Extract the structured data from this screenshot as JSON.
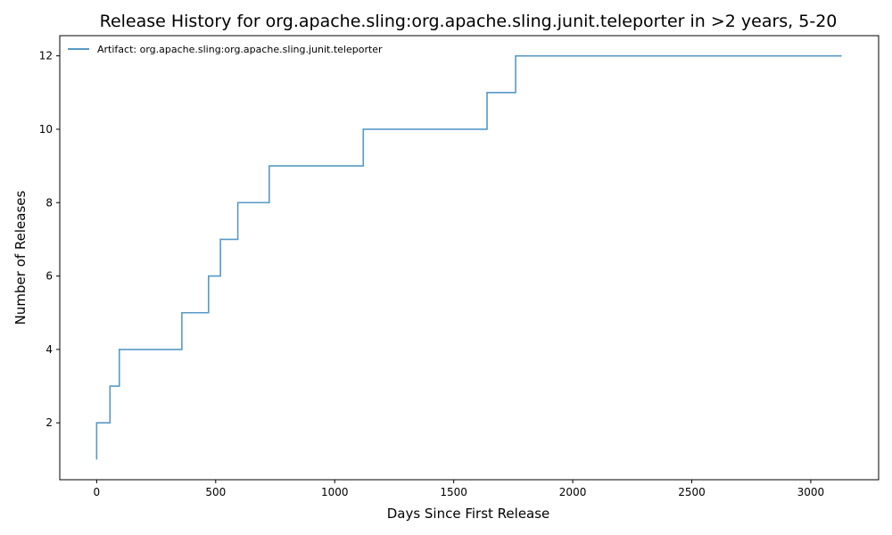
{
  "chart_data": {
    "type": "line",
    "step": "post",
    "title": "Release History for org.apache.sling:org.apache.sling.junit.teleporter in >2 years, 5-20",
    "xlabel": "Days Since First Release",
    "ylabel": "Number of Releases",
    "xlim": [
      -155,
      3285
    ],
    "ylim": [
      0.45,
      12.55
    ],
    "xticks": [
      0,
      500,
      1000,
      1500,
      2000,
      2500,
      3000
    ],
    "yticks": [
      2,
      4,
      6,
      8,
      10,
      12
    ],
    "grid": false,
    "legend_position": "top-left",
    "series": [
      {
        "name": "Artifact: org.apache.sling:org.apache.sling.junit.teleporter",
        "color": "#1f77b4",
        "x": [
          0,
          0,
          56,
          56,
          95,
          95,
          358,
          358,
          470,
          470,
          520,
          520,
          593,
          593,
          725,
          725,
          1120,
          1120,
          1640,
          1640,
          1760,
          1760,
          3130
        ],
        "y": [
          1,
          2,
          2,
          3,
          3,
          4,
          4,
          5,
          5,
          6,
          6,
          7,
          7,
          8,
          8,
          9,
          9,
          10,
          10,
          11,
          11,
          12,
          12
        ]
      }
    ]
  }
}
